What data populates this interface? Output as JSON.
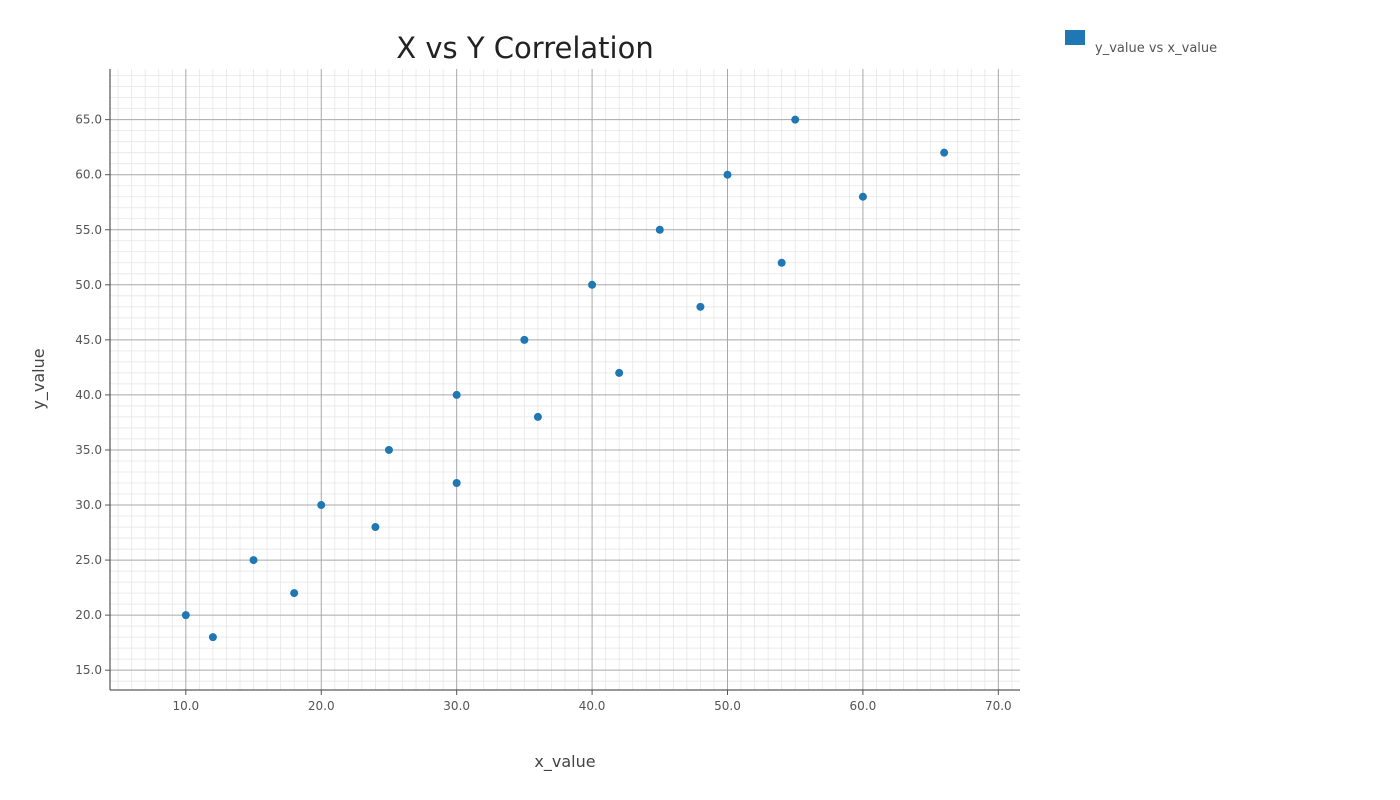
{
  "chart_data": {
    "type": "scatter",
    "title": "X vs Y Correlation",
    "xlabel": "x_value",
    "ylabel": "y_value",
    "xlim": [
      4.4,
      71.6
    ],
    "ylim": [
      13.2,
      69.6
    ],
    "x_ticks": [
      "10.0",
      "20.0",
      "30.0",
      "40.0",
      "50.0",
      "60.0",
      "70.0"
    ],
    "y_ticks": [
      "15.0",
      "20.0",
      "25.0",
      "30.0",
      "35.0",
      "40.0",
      "45.0",
      "50.0",
      "55.0",
      "60.0",
      "65.0"
    ],
    "grid": true,
    "legend_position": "top-right",
    "series": [
      {
        "name": "y_value vs x_value",
        "color": "#1f77b4",
        "points": [
          {
            "x": 10,
            "y": 20
          },
          {
            "x": 12,
            "y": 18
          },
          {
            "x": 15,
            "y": 25
          },
          {
            "x": 18,
            "y": 22
          },
          {
            "x": 20,
            "y": 30
          },
          {
            "x": 24,
            "y": 28
          },
          {
            "x": 25,
            "y": 35
          },
          {
            "x": 30,
            "y": 32
          },
          {
            "x": 30,
            "y": 40
          },
          {
            "x": 35,
            "y": 45
          },
          {
            "x": 36,
            "y": 38
          },
          {
            "x": 40,
            "y": 50
          },
          {
            "x": 42,
            "y": 42
          },
          {
            "x": 45,
            "y": 55
          },
          {
            "x": 48,
            "y": 48
          },
          {
            "x": 50,
            "y": 60
          },
          {
            "x": 54,
            "y": 52
          },
          {
            "x": 55,
            "y": 65
          },
          {
            "x": 60,
            "y": 58
          },
          {
            "x": 66,
            "y": 62
          }
        ]
      }
    ]
  }
}
